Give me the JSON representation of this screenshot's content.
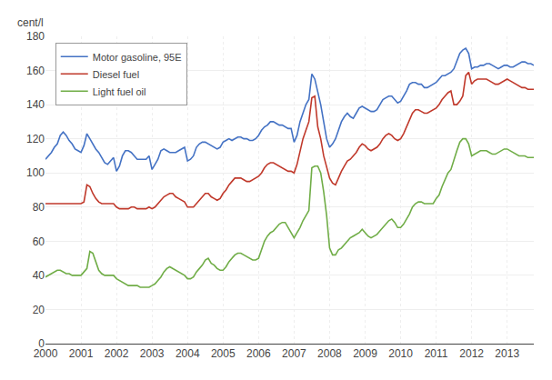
{
  "chart_data": {
    "type": "line",
    "ylabel": "cent/l",
    "x": [
      2000,
      2000.0833333333,
      2000.1666666667,
      2000.25,
      2000.3333333333,
      2000.4166666667,
      2000.5,
      2000.5833333333,
      2000.6666666667,
      2000.75,
      2000.8333333333,
      2000.9166666667,
      2001,
      2001.0833333333,
      2001.1666666667,
      2001.25,
      2001.3333333333,
      2001.4166666667,
      2001.5,
      2001.5833333333,
      2001.6666666667,
      2001.75,
      2001.8333333333,
      2001.9166666667,
      2002,
      2002.0833333333,
      2002.1666666667,
      2002.25,
      2002.3333333333,
      2002.4166666667,
      2002.5,
      2002.5833333333,
      2002.6666666667,
      2002.75,
      2002.8333333333,
      2002.9166666667,
      2003,
      2003.0833333333,
      2003.1666666667,
      2003.25,
      2003.3333333333,
      2003.4166666667,
      2003.5,
      2003.5833333333,
      2003.6666666667,
      2003.75,
      2003.8333333333,
      2003.9166666667,
      2004,
      2004.0833333333,
      2004.1666666667,
      2004.25,
      2004.3333333333,
      2004.4166666667,
      2004.5,
      2004.5833333333,
      2004.6666666667,
      2004.75,
      2004.8333333333,
      2004.9166666667,
      2005,
      2005.0833333333,
      2005.1666666667,
      2005.25,
      2005.3333333333,
      2005.4166666667,
      2005.5,
      2005.5833333333,
      2005.6666666667,
      2005.75,
      2005.8333333333,
      2005.9166666667,
      2006,
      2006.0833333333,
      2006.1666666667,
      2006.25,
      2006.3333333333,
      2006.4166666667,
      2006.5,
      2006.5833333333,
      2006.6666666667,
      2006.75,
      2006.8333333333,
      2006.9166666667,
      2007,
      2007.0833333333,
      2007.1666666667,
      2007.25,
      2007.3333333333,
      2007.4166666667,
      2007.5,
      2007.5833333333,
      2007.6666666667,
      2007.75,
      2007.8333333333,
      2007.9166666667,
      2008,
      2008.0833333333,
      2008.1666666667,
      2008.25,
      2008.3333333333,
      2008.4166666667,
      2008.5,
      2008.5833333333,
      2008.6666666667,
      2008.75,
      2008.8333333333,
      2008.9166666667,
      2009,
      2009.0833333333,
      2009.1666666667,
      2009.25,
      2009.3333333333,
      2009.4166666667,
      2009.5,
      2009.5833333333,
      2009.6666666667,
      2009.75,
      2009.8333333333,
      2009.9166666667,
      2010,
      2010.0833333333,
      2010.1666666667,
      2010.25,
      2010.3333333333,
      2010.4166666667,
      2010.5,
      2010.5833333333,
      2010.6666666667,
      2010.75,
      2010.8333333333,
      2010.9166666667,
      2011,
      2011.0833333333,
      2011.1666666667,
      2011.25,
      2011.3333333333,
      2011.4166666667,
      2011.5,
      2011.5833333333,
      2011.6666666667,
      2011.75,
      2011.8333333333,
      2011.9166666667,
      2012,
      2012.0833333333,
      2012.1666666667,
      2012.25,
      2012.3333333333,
      2012.4166666667,
      2012.5,
      2012.5833333333,
      2012.6666666667,
      2012.75,
      2012.8333333333,
      2012.9166666667,
      2013,
      2013.0833333333,
      2013.1666666667,
      2013.25,
      2013.3333333333,
      2013.4166666667,
      2013.5,
      2013.5833333333,
      2013.6666666667,
      2013.75
    ],
    "xlim": [
      2000.0,
      2013.75
    ],
    "xticks": [
      2000,
      2001,
      2002,
      2003,
      2004,
      2005,
      2006,
      2007,
      2008,
      2009,
      2010,
      2011,
      2012,
      2013
    ],
    "ylim": [
      0,
      180
    ],
    "yticks": [
      0,
      20,
      40,
      60,
      80,
      100,
      120,
      140,
      160,
      180
    ],
    "grid": true,
    "legend": "upper left",
    "series": [
      {
        "name": "Motor gasoline, 95E",
        "color": "#4472C4",
        "values": [
          108,
          110,
          112,
          115,
          117,
          122,
          124,
          122,
          119,
          117,
          114,
          113,
          112,
          116,
          123,
          120,
          117,
          114,
          112,
          109,
          106,
          105,
          107,
          109,
          101,
          104,
          110,
          113,
          113,
          112,
          110,
          108,
          108,
          108,
          108,
          110,
          102,
          105,
          108,
          113,
          114,
          113,
          112,
          112,
          112,
          113,
          114,
          115,
          107,
          108,
          110,
          115,
          117,
          118,
          118,
          117,
          116,
          115,
          114,
          115,
          118,
          119,
          120,
          119,
          120,
          121,
          121,
          120,
          120,
          119,
          119,
          120,
          122,
          125,
          127,
          128,
          130,
          130,
          129,
          128,
          128,
          127,
          126,
          126,
          118,
          122,
          130,
          135,
          140,
          143,
          158,
          155,
          148,
          140,
          130,
          120,
          115,
          117,
          120,
          125,
          130,
          133,
          135,
          133,
          132,
          135,
          138,
          139,
          138,
          137,
          136,
          136,
          137,
          140,
          143,
          144,
          145,
          145,
          143,
          141,
          142,
          145,
          148,
          152,
          153,
          153,
          152,
          152,
          150,
          150,
          151,
          152,
          153,
          155,
          157,
          157,
          158,
          159,
          161,
          165,
          170,
          172,
          173,
          170,
          161,
          162,
          162,
          163,
          163,
          164,
          164,
          163,
          162,
          161,
          162,
          163,
          163,
          162,
          162,
          163,
          164,
          165,
          165,
          164,
          164,
          163
        ]
      },
      {
        "name": "Diesel fuel",
        "color": "#C0392B",
        "values": [
          82,
          82,
          82,
          82,
          82,
          82,
          82,
          82,
          82,
          82,
          82,
          82,
          82,
          83,
          93,
          92,
          88,
          85,
          83,
          82,
          82,
          82,
          82,
          82,
          80,
          79,
          79,
          79,
          79,
          80,
          80,
          79,
          79,
          79,
          79,
          80,
          79,
          80,
          82,
          84,
          86,
          87,
          88,
          88,
          86,
          85,
          84,
          83,
          80,
          80,
          80,
          82,
          84,
          86,
          88,
          88,
          86,
          85,
          84,
          85,
          88,
          90,
          93,
          95,
          97,
          97,
          97,
          96,
          95,
          95,
          96,
          97,
          98,
          100,
          103,
          105,
          106,
          106,
          105,
          104,
          103,
          102,
          101,
          101,
          100,
          105,
          113,
          120,
          125,
          130,
          144,
          145,
          127,
          120,
          110,
          103,
          97,
          94,
          93,
          97,
          101,
          104,
          107,
          108,
          110,
          112,
          115,
          117,
          116,
          114,
          113,
          114,
          115,
          117,
          120,
          122,
          123,
          122,
          120,
          119,
          120,
          123,
          127,
          131,
          135,
          137,
          137,
          136,
          135,
          135,
          136,
          137,
          138,
          140,
          143,
          145,
          147,
          148,
          140,
          140,
          142,
          145,
          157,
          159,
          152,
          154,
          155,
          155,
          155,
          155,
          154,
          153,
          152,
          152,
          153,
          154,
          155,
          154,
          153,
          152,
          151,
          150,
          150,
          149,
          149,
          149
        ]
      },
      {
        "name": "Light fuel oil",
        "color": "#70AD47",
        "values": [
          39,
          40,
          41,
          42,
          43,
          43,
          42,
          41,
          41,
          40,
          40,
          40,
          40,
          42,
          44,
          54,
          53,
          48,
          43,
          41,
          40,
          40,
          40,
          40,
          38,
          37,
          36,
          35,
          34,
          34,
          34,
          34,
          33,
          33,
          33,
          33,
          34,
          35,
          37,
          39,
          42,
          44,
          45,
          44,
          43,
          42,
          41,
          40,
          38,
          38,
          39,
          42,
          44,
          46,
          49,
          50,
          47,
          46,
          44,
          43,
          43,
          45,
          48,
          50,
          52,
          53,
          53,
          52,
          51,
          50,
          49,
          49,
          50,
          55,
          60,
          63,
          65,
          66,
          68,
          70,
          71,
          71,
          68,
          65,
          62,
          65,
          68,
          72,
          75,
          78,
          103,
          104,
          104,
          100,
          89,
          75,
          56,
          52,
          52,
          55,
          56,
          58,
          60,
          62,
          63,
          64,
          65,
          67,
          65,
          63,
          62,
          63,
          64,
          66,
          68,
          70,
          72,
          73,
          71,
          68,
          68,
          70,
          73,
          76,
          80,
          82,
          83,
          83,
          82,
          82,
          82,
          82,
          85,
          87,
          92,
          96,
          100,
          102,
          108,
          113,
          118,
          120,
          120,
          117,
          110,
          111,
          112,
          113,
          113,
          113,
          112,
          111,
          111,
          112,
          113,
          114,
          114,
          113,
          112,
          111,
          110,
          110,
          110,
          109,
          109,
          109
        ]
      }
    ]
  }
}
